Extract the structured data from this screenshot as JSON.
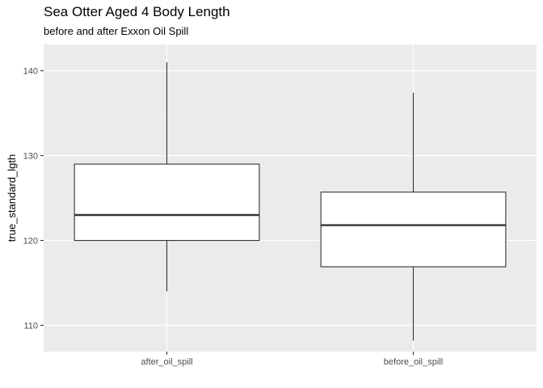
{
  "chart_data": {
    "type": "boxplot",
    "title": "Sea Otter Aged 4 Body Length",
    "subtitle": "before and after Exxon Oil Spill",
    "xlabel": "",
    "ylabel": "true_standard_lgth",
    "categories": [
      "after_oil_spill",
      "before_oil_spill"
    ],
    "boxes": [
      {
        "category": "after_oil_spill",
        "min": 114,
        "q1": 120,
        "median": 123,
        "q3": 129,
        "max": 141
      },
      {
        "category": "before_oil_spill",
        "min": 108.2,
        "q1": 116.9,
        "median": 121.8,
        "q3": 125.7,
        "max": 137.4
      }
    ],
    "ylim": [
      106.9,
      143.1
    ],
    "yticks": [
      110,
      120,
      130,
      140
    ],
    "grid": true,
    "legend": "none",
    "colors": {
      "panel_background": "#ebebeb",
      "grid_major": "#ffffff",
      "box_fill": "#ffffff",
      "box_stroke": "#333333",
      "tick_text": "#4d4d4d"
    }
  }
}
